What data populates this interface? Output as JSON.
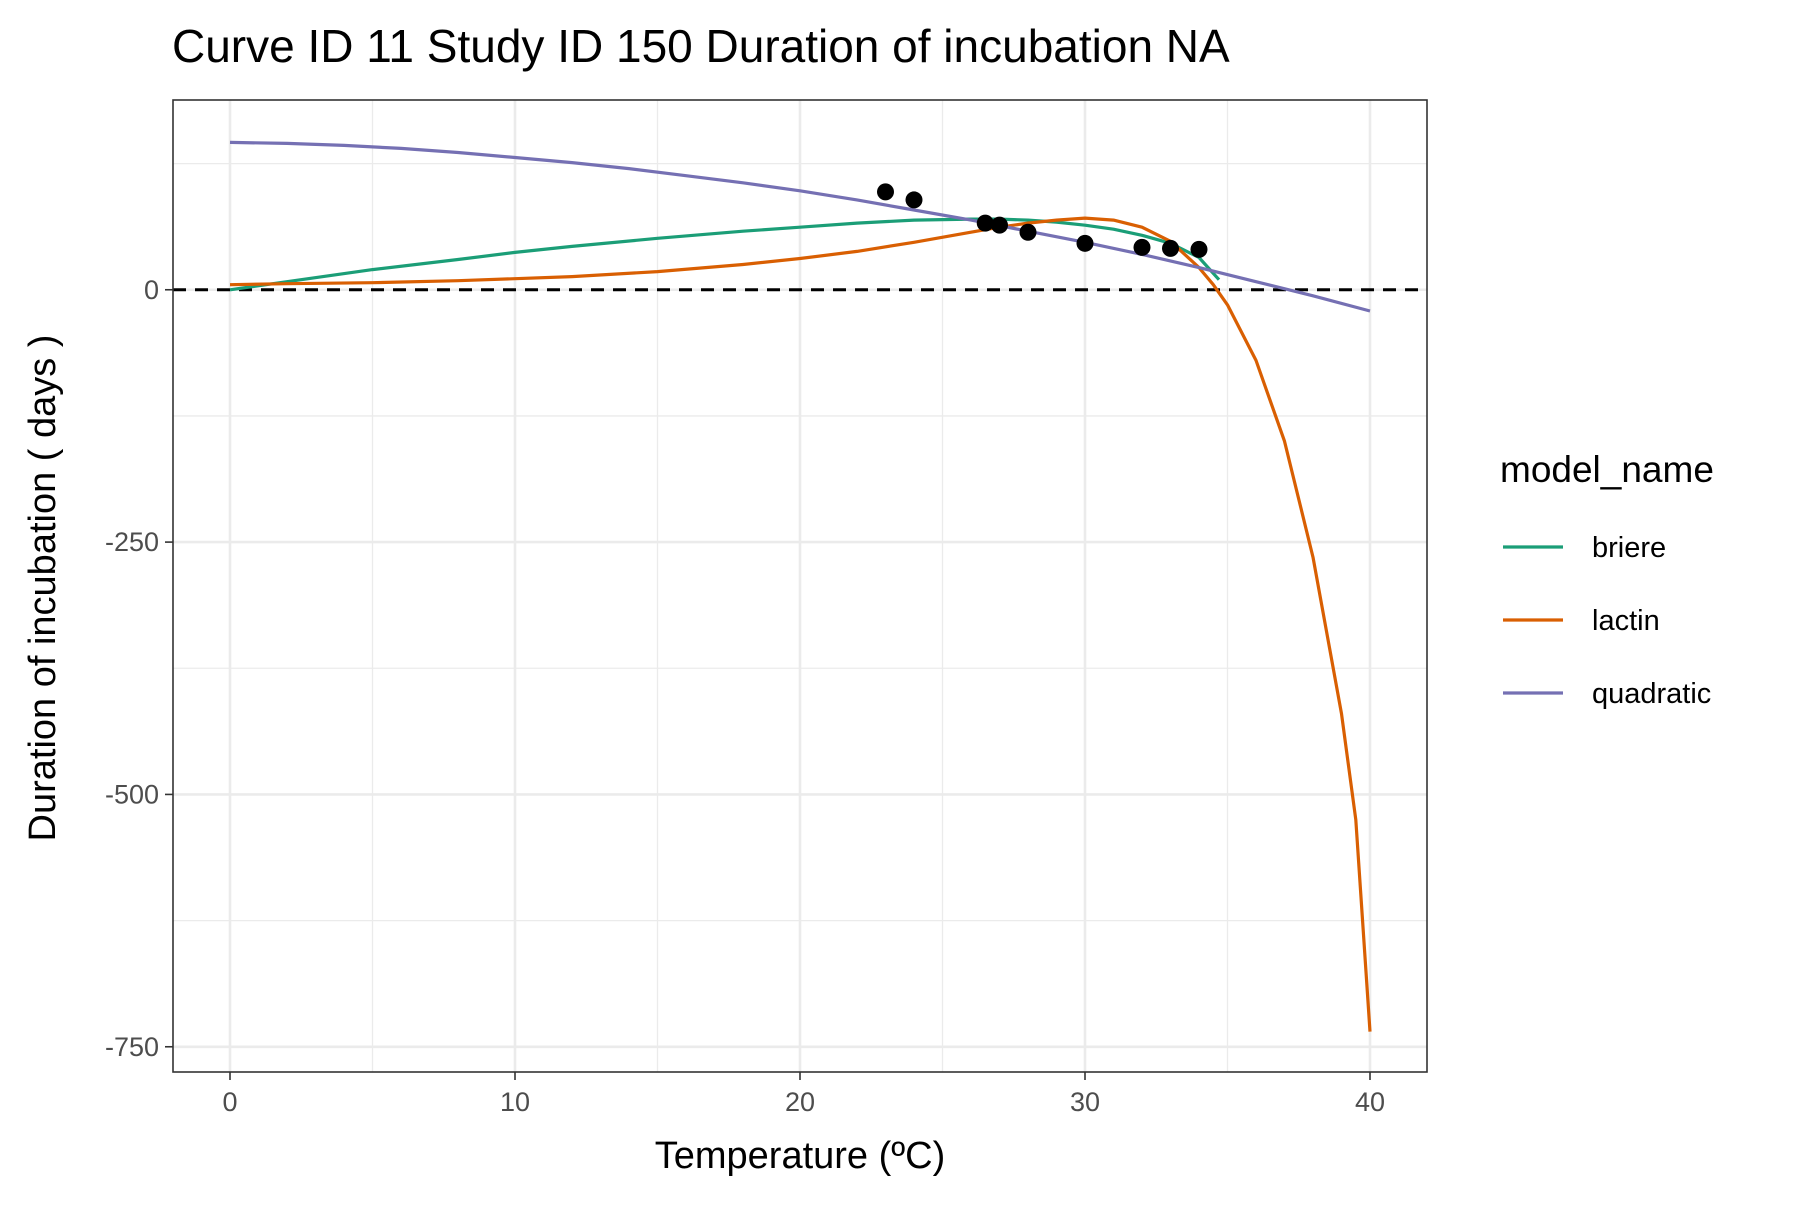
{
  "chart_data": {
    "type": "line",
    "title": "Curve ID 11 Study ID 150 Duration of incubation NA",
    "xlabel": "Temperature (ºC)",
    "ylabel": "Duration of incubation ( days )",
    "xlim": [
      -2,
      42
    ],
    "ylim": [
      -775,
      188
    ],
    "x_ticks": [
      0,
      10,
      20,
      30,
      40
    ],
    "y_ticks": [
      -750,
      -500,
      -250,
      0
    ],
    "x_tick_labels": [
      "0",
      "10",
      "20",
      "30",
      "40"
    ],
    "y_tick_labels": [
      "-750",
      "-500",
      "-250",
      "0"
    ],
    "grid": true,
    "reference_line": {
      "y": 0,
      "style": "dashed",
      "color": "#000000"
    },
    "legend": {
      "title": "model_name",
      "placement": "right"
    },
    "series": [
      {
        "name": "briere",
        "color": "#1b9e77",
        "x": [
          0,
          2,
          5,
          8,
          10,
          12,
          15,
          18,
          20,
          22,
          24,
          26,
          27,
          28,
          29,
          30,
          31,
          32,
          33,
          34,
          34.7
        ],
        "y": [
          0,
          8,
          20,
          30,
          37,
          43,
          51,
          58,
          62,
          66,
          69,
          70,
          70,
          69,
          67,
          64,
          60,
          54,
          46,
          32,
          10
        ]
      },
      {
        "name": "lactin",
        "color": "#d95f02",
        "x": [
          0,
          2,
          5,
          8,
          10,
          12,
          15,
          18,
          20,
          22,
          24,
          26,
          27,
          28,
          29,
          30,
          31,
          32,
          33,
          34,
          34.5,
          35,
          36,
          37,
          38,
          39,
          39.5,
          40
        ],
        "y": [
          5,
          6,
          7,
          9,
          11,
          13,
          18,
          25,
          31,
          38,
          47,
          57,
          62,
          66,
          69,
          71,
          69,
          62,
          48,
          22,
          5,
          -15,
          -70,
          -150,
          -265,
          -420,
          -525,
          -735
        ]
      },
      {
        "name": "quadratic",
        "color": "#7570b3",
        "x": [
          0,
          2,
          4,
          6,
          8,
          10,
          12,
          14,
          16,
          18,
          20,
          22,
          24,
          26,
          28,
          30,
          32,
          34,
          36,
          38,
          40
        ],
        "y": [
          146,
          145,
          143,
          140,
          136,
          131,
          126,
          120,
          113,
          106,
          98,
          89,
          79,
          69,
          58,
          47,
          35,
          22,
          8,
          -6,
          -21
        ]
      }
    ],
    "points": {
      "x": [
        23,
        24,
        26.5,
        27,
        28,
        30,
        32,
        33,
        34
      ],
      "y": [
        97,
        89,
        66,
        64,
        57,
        46,
        42,
        41,
        40
      ]
    }
  }
}
